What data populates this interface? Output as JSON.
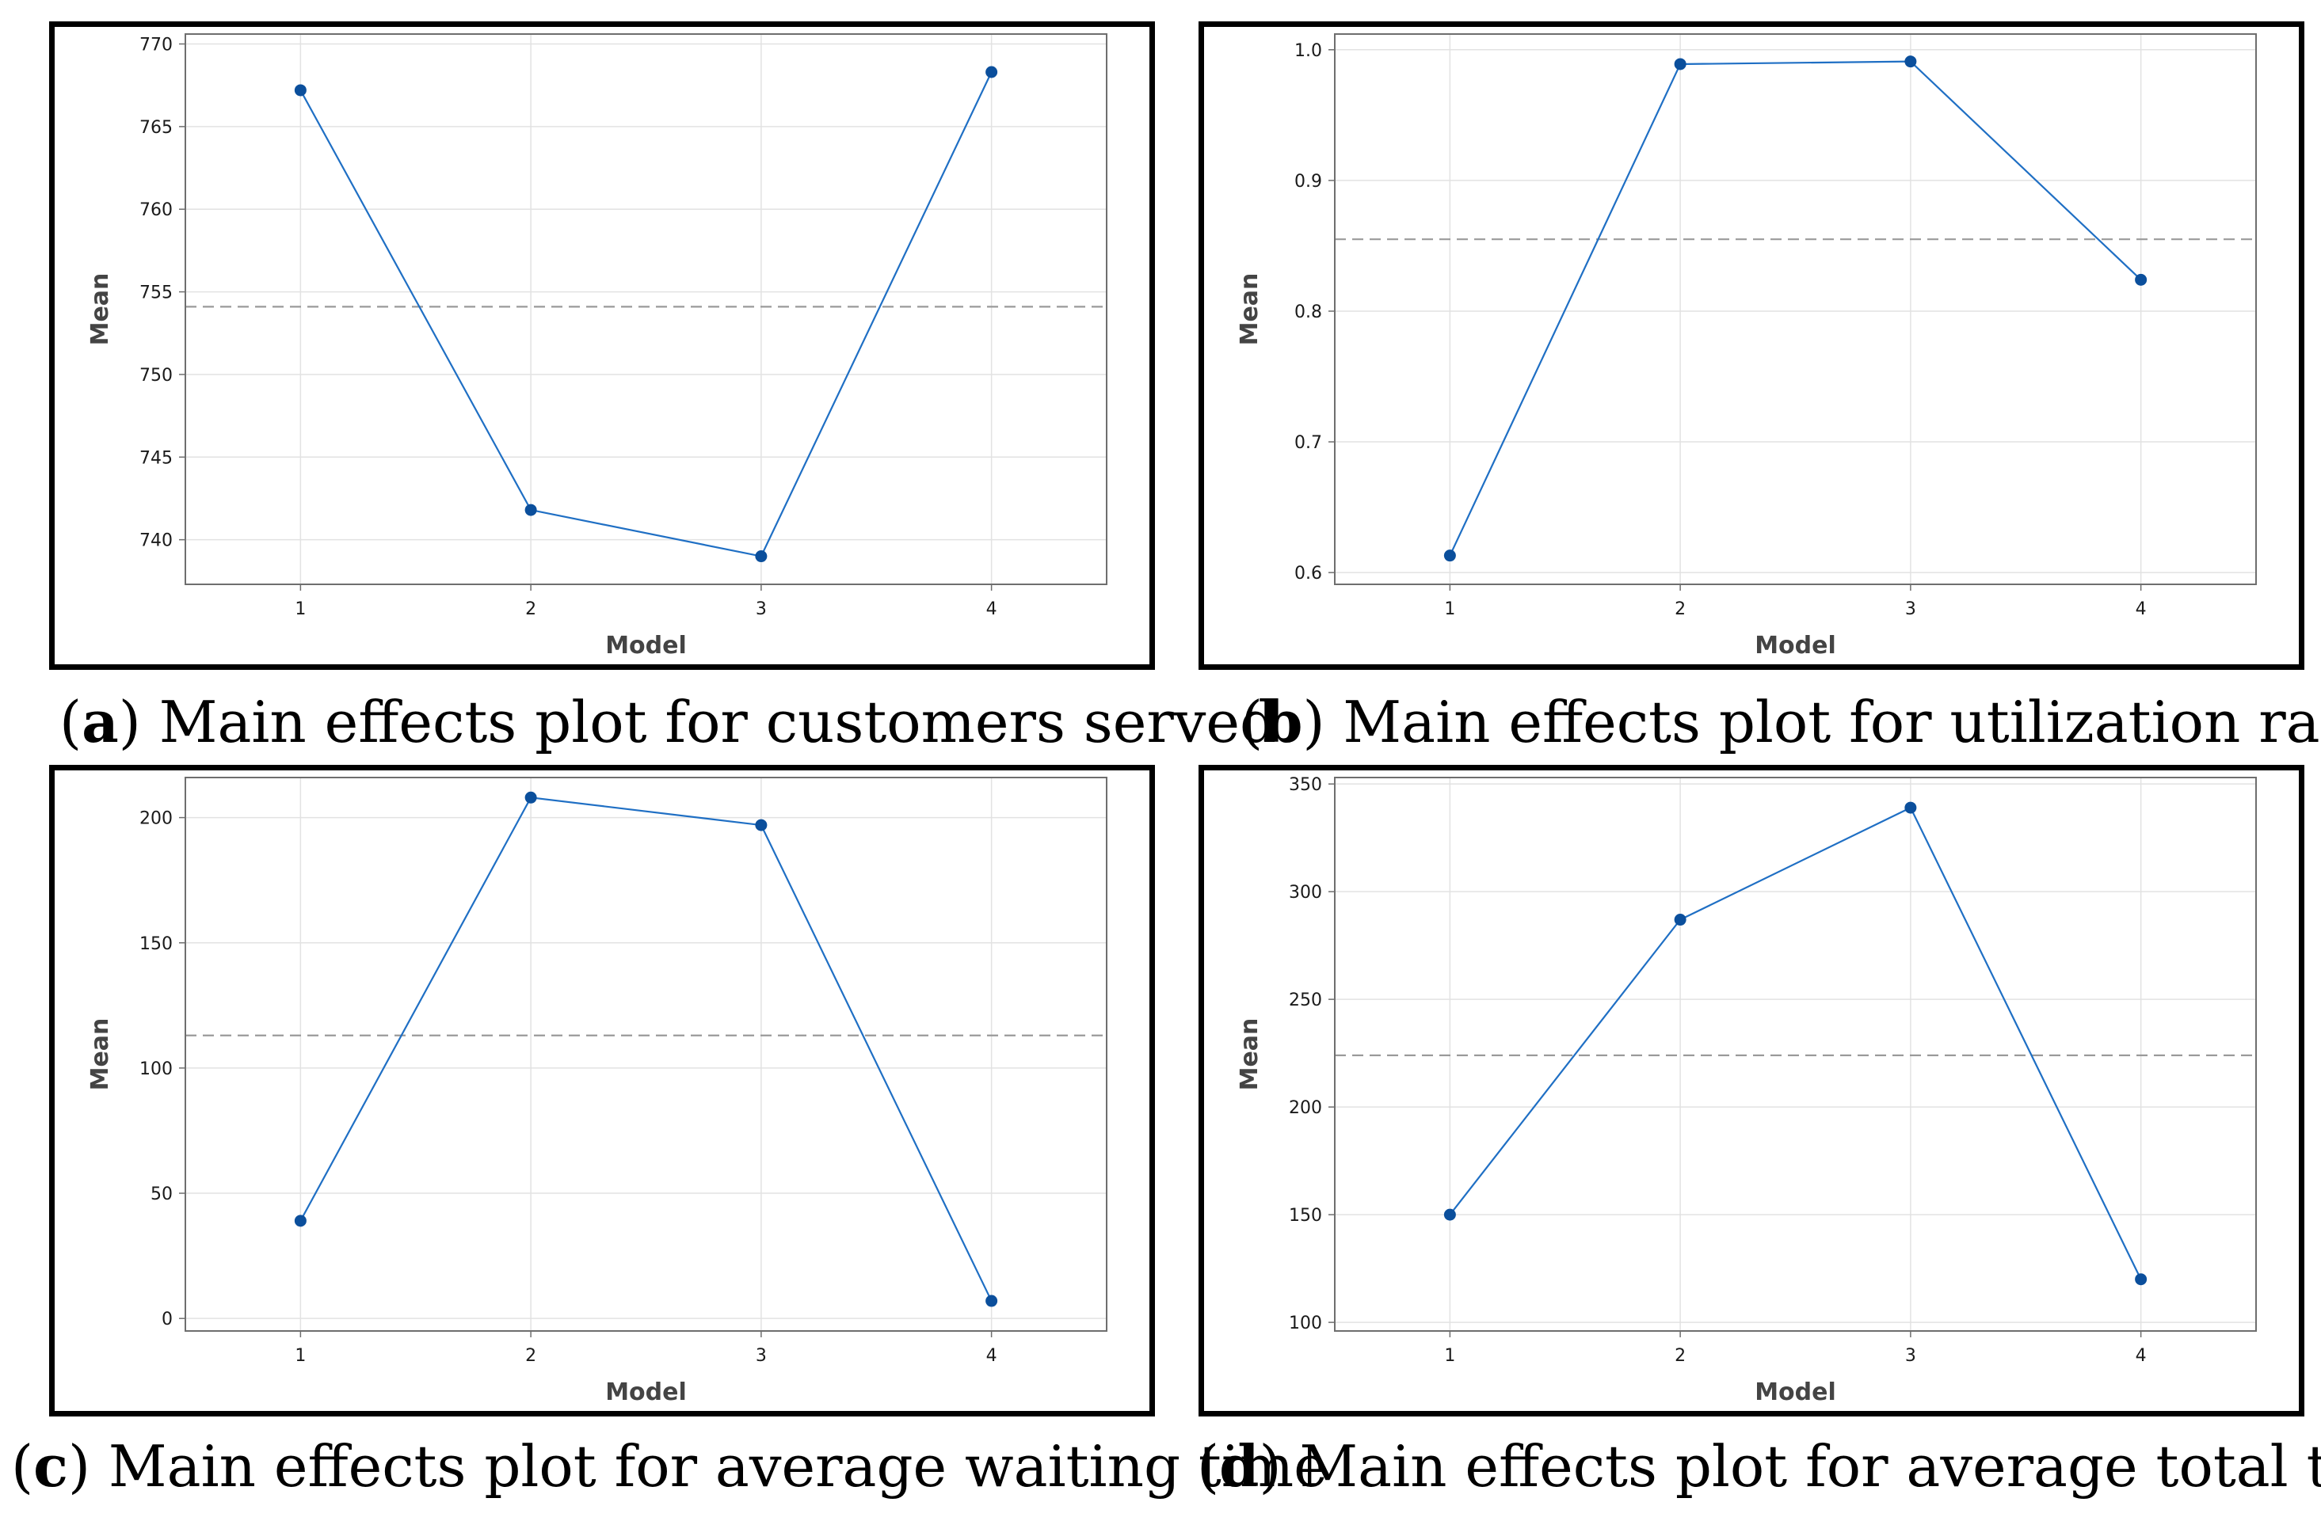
{
  "colors": {
    "line": "#1f6fc4",
    "marker": "#0b4f9c",
    "reference": "#9a9a9a",
    "grid": "#e2e2e2",
    "plot_border": "#6e6e6e"
  },
  "chart_data": [
    {
      "type": "line",
      "caption_letter": "a",
      "caption_text": " Main effects plot for customers served",
      "x": [
        "1",
        "2",
        "3",
        "4"
      ],
      "values": [
        767.2,
        741.8,
        739.0,
        768.3
      ],
      "reference_mean": 754.1,
      "xlabel": "Model",
      "ylabel": "Mean",
      "ylim": [
        737.3,
        770.6
      ],
      "yticks": [
        740,
        745,
        750,
        755,
        760,
        765,
        770
      ],
      "grid": true
    },
    {
      "type": "line",
      "caption_letter": "b",
      "caption_text": " Main effects plot for utilization rate",
      "x": [
        "1",
        "2",
        "3",
        "4"
      ],
      "values": [
        0.613,
        0.989,
        0.991,
        0.824
      ],
      "reference_mean": 0.855,
      "xlabel": "Model",
      "ylabel": "Mean",
      "ylim": [
        0.591,
        1.012
      ],
      "yticks": [
        0.6,
        0.7,
        0.8,
        0.9,
        1.0
      ],
      "ytick_labels": [
        "0.6",
        "0.7",
        "0.8",
        "0.9",
        "1.0"
      ],
      "grid": true
    },
    {
      "type": "line",
      "caption_letter": "c",
      "caption_text": " Main effects plot for average waiting time",
      "x": [
        "1",
        "2",
        "3",
        "4"
      ],
      "values": [
        39,
        208,
        197,
        7
      ],
      "reference_mean": 113,
      "xlabel": "Model",
      "ylabel": "Mean",
      "ylim": [
        -5,
        216
      ],
      "yticks": [
        0,
        50,
        100,
        150,
        200
      ],
      "grid": true
    },
    {
      "type": "line",
      "caption_letter": "d",
      "caption_text": " Main effects plot for average total time",
      "x": [
        "1",
        "2",
        "3",
        "4"
      ],
      "values": [
        150,
        287,
        339,
        120
      ],
      "reference_mean": 224,
      "xlabel": "Model",
      "ylabel": "Mean",
      "ylim": [
        96,
        353
      ],
      "yticks": [
        100,
        150,
        200,
        250,
        300,
        350
      ],
      "grid": true
    }
  ]
}
